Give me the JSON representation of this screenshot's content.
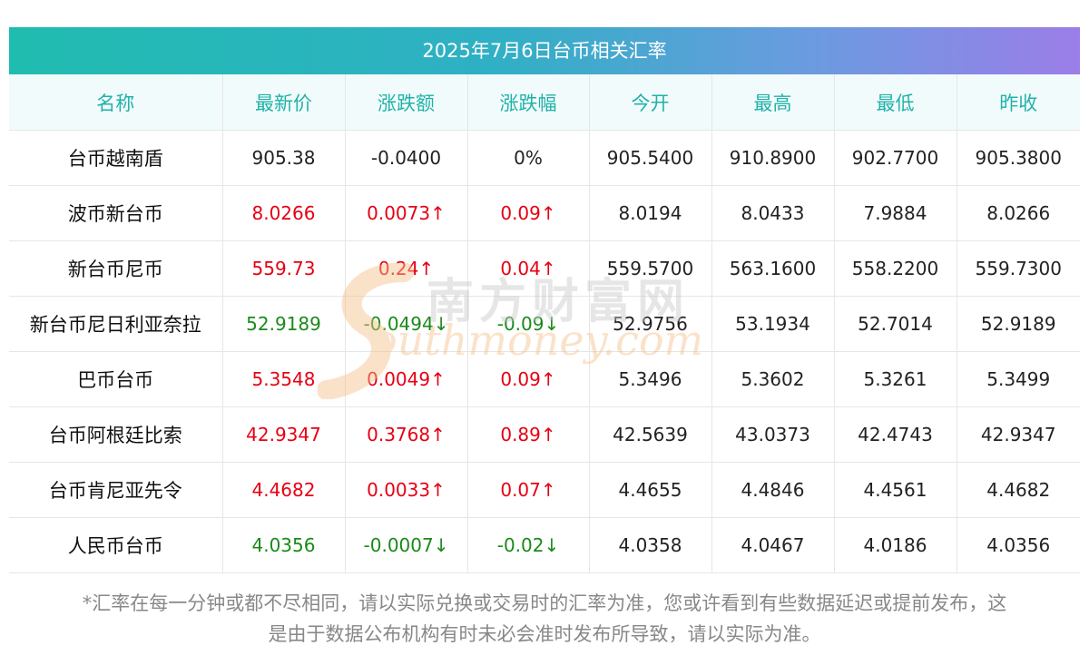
{
  "title": "2025年7月6日台币相关汇率",
  "columns": [
    "名称",
    "最新价",
    "涨跌额",
    "涨跌幅",
    "今开",
    "最高",
    "最低",
    "昨收"
  ],
  "rows": [
    {
      "name": "台币越南盾",
      "latest": "905.38",
      "change": "-0.0400",
      "pct": "0%",
      "open": "905.5400",
      "high": "910.8900",
      "low": "902.7700",
      "close": "905.3800",
      "trend": "flat"
    },
    {
      "name": "波币新台币",
      "latest": "8.0266",
      "change": "0.0073↑",
      "pct": "0.09↑",
      "open": "8.0194",
      "high": "8.0433",
      "low": "7.9884",
      "close": "8.0266",
      "trend": "up"
    },
    {
      "name": "新台币尼币",
      "latest": "559.73",
      "change": "0.24↑",
      "pct": "0.04↑",
      "open": "559.5700",
      "high": "563.1600",
      "low": "558.2200",
      "close": "559.7300",
      "trend": "up"
    },
    {
      "name": "新台币尼日利亚奈拉",
      "latest": "52.9189",
      "change": "-0.0494↓",
      "pct": "-0.09↓",
      "open": "52.9756",
      "high": "53.1934",
      "low": "52.7014",
      "close": "52.9189",
      "trend": "down"
    },
    {
      "name": "巴币台币",
      "latest": "5.3548",
      "change": "0.0049↑",
      "pct": "0.09↑",
      "open": "5.3496",
      "high": "5.3602",
      "low": "5.3261",
      "close": "5.3499",
      "trend": "up"
    },
    {
      "name": "台币阿根廷比索",
      "latest": "42.9347",
      "change": "0.3768↑",
      "pct": "0.89↑",
      "open": "42.5639",
      "high": "43.0373",
      "low": "42.4743",
      "close": "42.9347",
      "trend": "up"
    },
    {
      "name": "台币肯尼亚先令",
      "latest": "4.4682",
      "change": "0.0033↑",
      "pct": "0.07↑",
      "open": "4.4655",
      "high": "4.4846",
      "low": "4.4561",
      "close": "4.4682",
      "trend": "up"
    },
    {
      "name": "人民币台币",
      "latest": "4.0356",
      "change": "-0.0007↓",
      "pct": "-0.02↓",
      "open": "4.0358",
      "high": "4.0467",
      "low": "4.0186",
      "close": "4.0356",
      "trend": "down"
    }
  ],
  "footnote": {
    "line1": "*汇率在每一分钟或都不尽相同，请以实际兑换或交易时的汇率为准，您或许看到有些数据延迟或提前发布，这",
    "line2": "是由于数据公布机构有时未必会准时发布所导致，请以实际为准。"
  },
  "watermark": {
    "cn": "南方财富网",
    "en": "outhmoney.com"
  },
  "colors": {
    "up": "#e60012",
    "down": "#1a8a1a",
    "header_text": "#20b2aa"
  }
}
